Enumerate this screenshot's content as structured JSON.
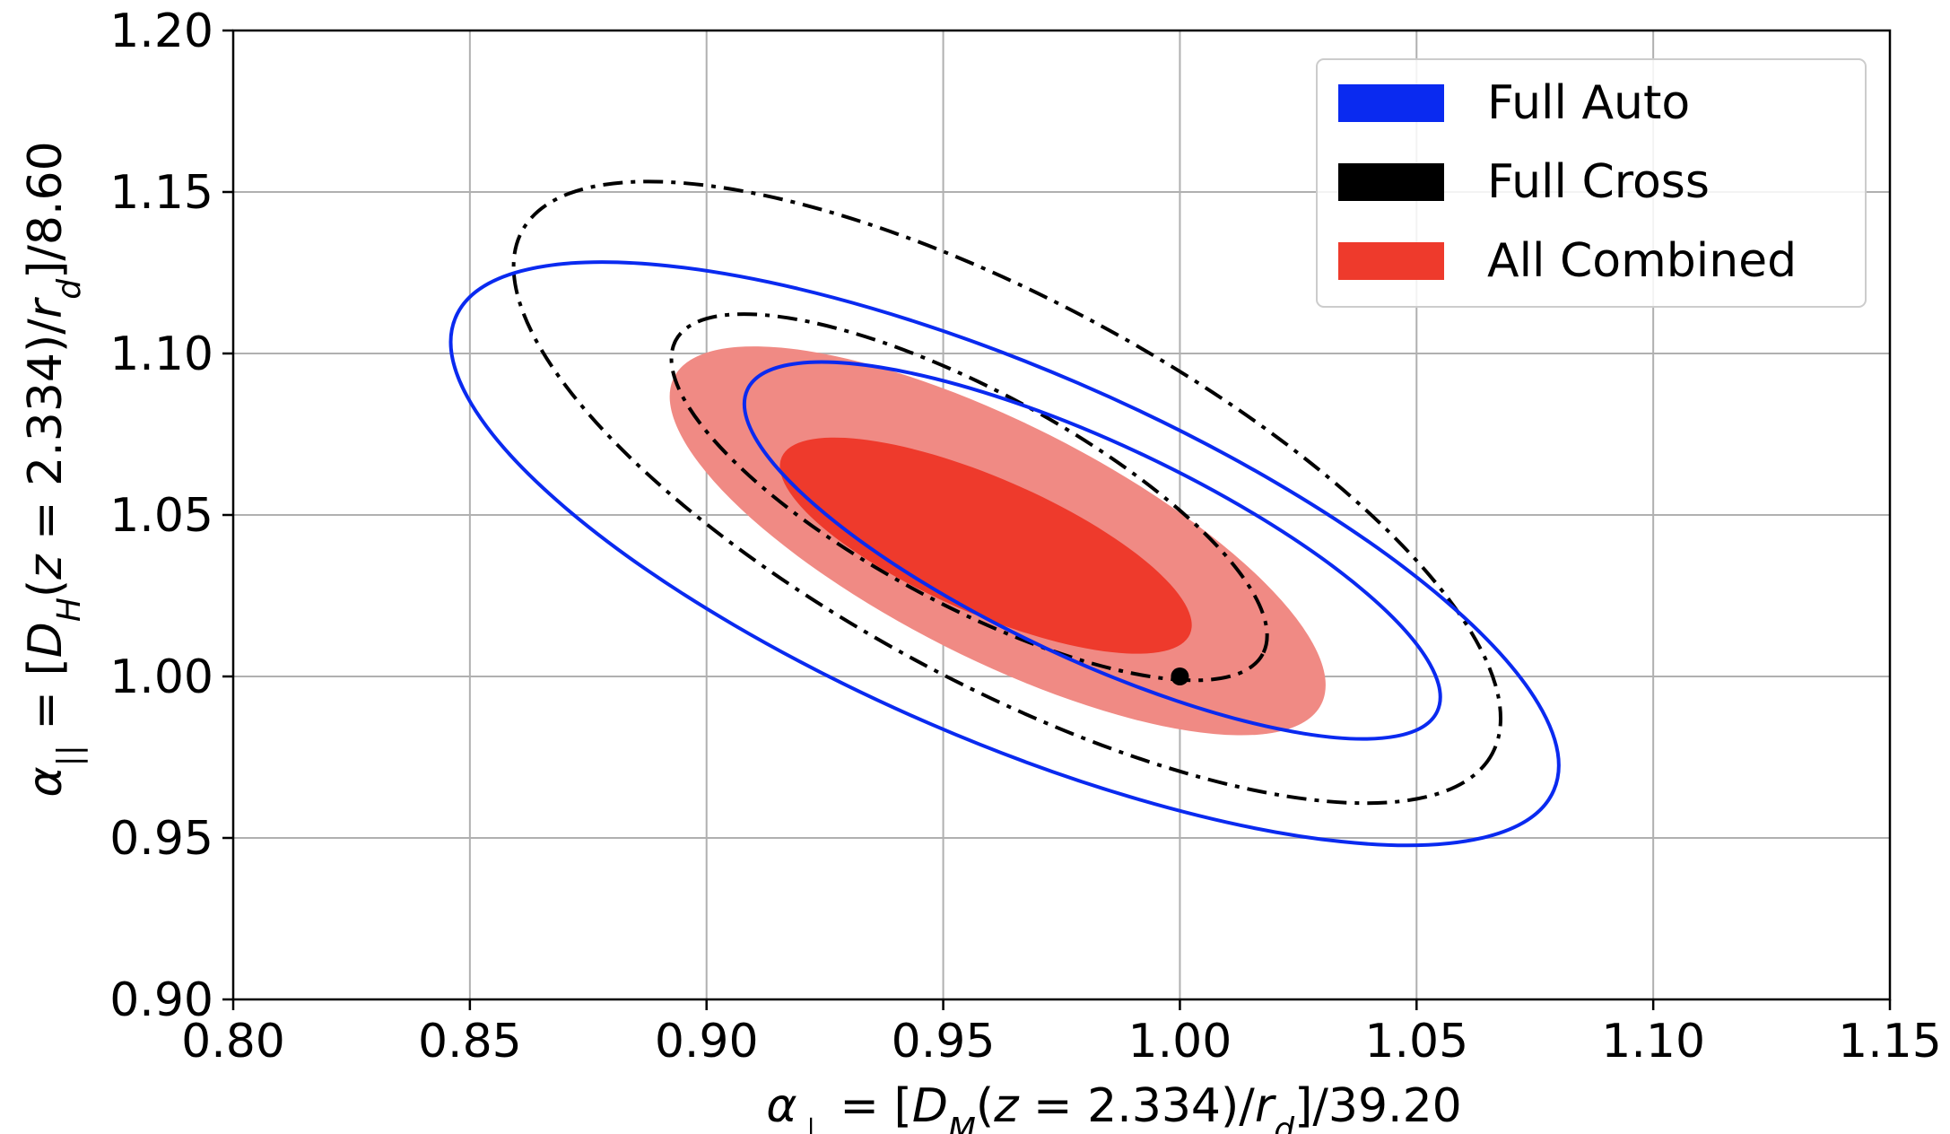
{
  "chart_data": {
    "type": "contour",
    "title": "",
    "xlabel": "α⊥ = [DM(z = 2.334)/rd]/39.20",
    "ylabel": "α|| = [DH(z = 2.334)/rd]/8.60",
    "xlim": [
      0.8,
      1.15
    ],
    "ylim": [
      0.9,
      1.2
    ],
    "xticks": [
      "0.80",
      "0.85",
      "0.90",
      "0.95",
      "1.00",
      "1.05",
      "1.10",
      "1.15"
    ],
    "yticks": [
      "0.90",
      "0.95",
      "1.00",
      "1.05",
      "1.10",
      "1.15",
      "1.20"
    ],
    "grid": true,
    "legend_position": "top-right",
    "series": [
      {
        "name": "Full Auto",
        "color": "#0a2af0",
        "style": "solid line",
        "contours": [
          {
            "level": "inner",
            "center": [
              0.9815,
              1.039
            ],
            "semi_axes": [
              0.0804,
              0.0335
            ],
            "angle_deg": 25.0
          },
          {
            "level": "outer",
            "center": [
              0.963,
              1.038
            ],
            "semi_axes": [
              0.1263,
              0.0575
            ],
            "angle_deg": 23.3
          }
        ]
      },
      {
        "name": "Full Cross",
        "color": "#000000",
        "style": "dash-dot line",
        "contours": [
          {
            "level": "inner",
            "center": [
              0.9555,
              1.0555
            ],
            "semi_axes": [
              0.0703,
              0.0332
            ],
            "angle_deg": 28.1
          },
          {
            "level": "outer",
            "center": [
              0.9635,
              1.057
            ],
            "semi_axes": [
              0.1164,
              0.0592
            ],
            "angle_deg": 28.3
          }
        ]
      },
      {
        "name": "All Combined",
        "color": "#ee3a2c",
        "style": "filled",
        "contours": [
          {
            "level": "outer",
            "center": [
              0.9615,
              1.042
            ],
            "semi_axes": [
              0.0766,
              0.0365
            ],
            "angle_deg": 26.8,
            "color": "#f08a84"
          },
          {
            "level": "inner",
            "center": [
              0.959,
              1.0405
            ],
            "semi_axes": [
              0.047,
              0.021
            ],
            "angle_deg": 23.4,
            "color": "#ee3a2c"
          }
        ]
      }
    ],
    "points": [
      {
        "x": 1.0,
        "y": 1.0,
        "color": "#000000"
      }
    ]
  }
}
